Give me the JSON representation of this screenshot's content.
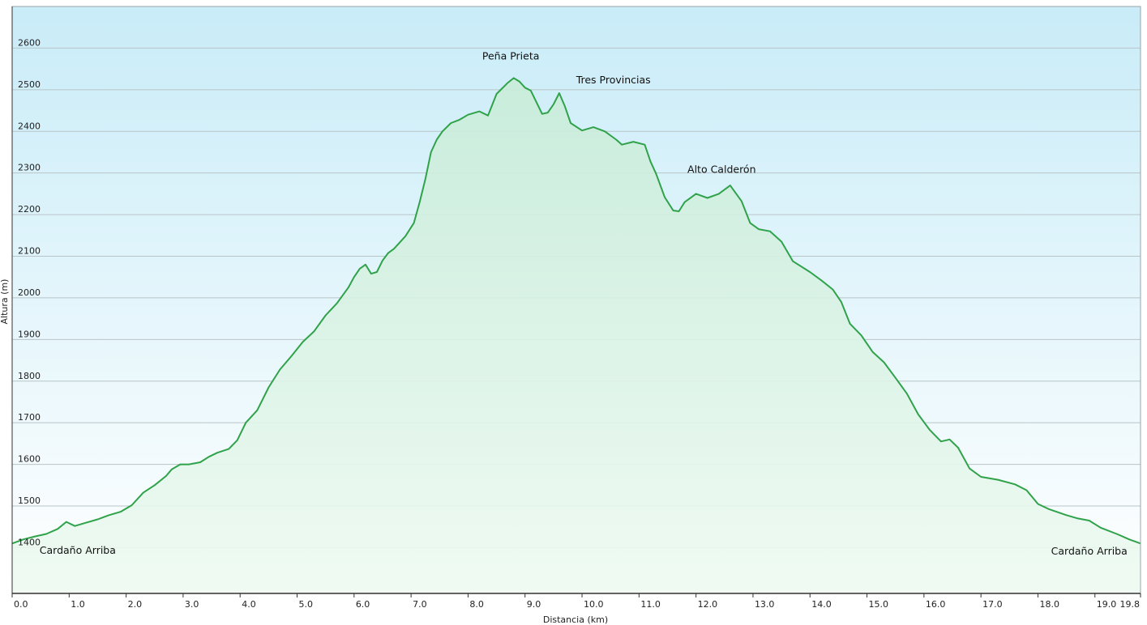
{
  "chart_data": {
    "type": "area",
    "title": "",
    "xlabel": "Distancia  (km)",
    "ylabel": "Altura (m)",
    "xlim": [
      0.0,
      19.8
    ],
    "ylim": [
      1290,
      2700
    ],
    "x_ticks": [
      "0.0",
      "1.0",
      "2.0",
      "3.0",
      "4.0",
      "5.0",
      "6.0",
      "7.0",
      "8.0",
      "9.0",
      "10.0",
      "11.0",
      "12.0",
      "13.0",
      "14.0",
      "15.0",
      "16.0",
      "17.0",
      "18.0",
      "19.0",
      "19.8"
    ],
    "y_ticks": [
      "1400",
      "1500",
      "1600",
      "1700",
      "1800",
      "1900",
      "2000",
      "2100",
      "2200",
      "2300",
      "2400",
      "2500",
      "2600"
    ],
    "grid": true,
    "colors": {
      "line": "#2fa24a",
      "fill_top": "#c8ecd8",
      "fill_bottom": "#eefaf2",
      "bg_top": "#c9ecf8",
      "bg_bottom": "#ffffff",
      "grid": "#b8c4c8"
    },
    "annotations": [
      {
        "text": "Peña Prieta",
        "x": 8.75,
        "y": 2573
      },
      {
        "text": "Tres Provincias",
        "x": 10.55,
        "y": 2515
      },
      {
        "text": "Alto Calderón",
        "x": 12.45,
        "y": 2300
      },
      {
        "text": "Cardaño Arriba",
        "x": 1.15,
        "y": 1385
      },
      {
        "text": "Cardaño Arriba",
        "x": 18.9,
        "y": 1383
      }
    ],
    "series": [
      {
        "x": [
          0.0,
          0.2,
          0.4,
          0.6,
          0.8,
          0.95,
          1.1,
          1.3,
          1.5,
          1.7,
          1.9,
          2.1,
          2.3,
          2.5,
          2.7,
          2.8,
          2.95,
          3.1,
          3.3,
          3.45,
          3.6,
          3.8,
          3.95,
          4.1,
          4.3,
          4.5,
          4.7,
          4.9,
          5.1,
          5.3,
          5.5,
          5.7,
          5.9,
          6.0,
          6.1,
          6.2,
          6.3,
          6.4,
          6.5,
          6.6,
          6.7,
          6.9,
          7.05,
          7.15,
          7.25,
          7.35,
          7.45,
          7.55,
          7.7,
          7.85,
          8.0,
          8.2,
          8.35,
          8.5,
          8.7,
          8.8,
          8.9,
          9.0,
          9.1,
          9.2,
          9.3,
          9.4,
          9.5,
          9.6,
          9.7,
          9.8,
          10.0,
          10.2,
          10.4,
          10.6,
          10.7,
          10.9,
          11.1,
          11.2,
          11.3,
          11.45,
          11.6,
          11.7,
          11.8,
          12.0,
          12.2,
          12.4,
          12.6,
          12.8,
          12.95,
          13.1,
          13.3,
          13.5,
          13.7,
          14.0,
          14.2,
          14.4,
          14.55,
          14.7,
          14.9,
          15.1,
          15.3,
          15.5,
          15.7,
          15.9,
          16.1,
          16.3,
          16.45,
          16.6,
          16.8,
          17.0,
          17.3,
          17.6,
          17.8,
          18.0,
          18.2,
          18.5,
          18.7,
          18.9,
          19.1,
          19.4,
          19.6,
          19.8
        ],
        "y": [
          1410,
          1420,
          1427,
          1433,
          1445,
          1462,
          1452,
          1460,
          1468,
          1478,
          1486,
          1502,
          1532,
          1550,
          1572,
          1588,
          1600,
          1600,
          1605,
          1618,
          1628,
          1637,
          1658,
          1700,
          1730,
          1785,
          1828,
          1860,
          1894,
          1920,
          1958,
          1987,
          2025,
          2050,
          2070,
          2080,
          2058,
          2062,
          2090,
          2108,
          2118,
          2148,
          2180,
          2230,
          2285,
          2350,
          2380,
          2400,
          2420,
          2428,
          2440,
          2448,
          2438,
          2490,
          2517,
          2528,
          2520,
          2505,
          2498,
          2470,
          2442,
          2445,
          2465,
          2492,
          2460,
          2420,
          2402,
          2410,
          2400,
          2380,
          2368,
          2375,
          2368,
          2328,
          2298,
          2242,
          2210,
          2208,
          2230,
          2250,
          2240,
          2250,
          2270,
          2232,
          2180,
          2165,
          2160,
          2135,
          2088,
          2062,
          2042,
          2020,
          1990,
          1938,
          1910,
          1870,
          1845,
          1808,
          1770,
          1720,
          1683,
          1655,
          1660,
          1640,
          1590,
          1570,
          1563,
          1552,
          1538,
          1505,
          1492,
          1478,
          1470,
          1465,
          1448,
          1432,
          1420,
          1410
        ]
      }
    ]
  }
}
